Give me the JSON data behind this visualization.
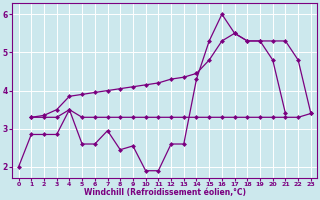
{
  "xlabel": "Windchill (Refroidissement éolien,°C)",
  "bg_color": "#cce8ed",
  "line_color": "#7b0080",
  "grid_color": "#b0d8e0",
  "xlim": [
    -0.5,
    23.5
  ],
  "ylim": [
    1.7,
    6.3
  ],
  "yticks": [
    2,
    3,
    4,
    5,
    6
  ],
  "xticks": [
    0,
    1,
    2,
    3,
    4,
    5,
    6,
    7,
    8,
    9,
    10,
    11,
    12,
    13,
    14,
    15,
    16,
    17,
    18,
    19,
    20,
    21,
    22,
    23
  ],
  "line1_x": [
    0,
    1,
    2,
    3,
    4,
    5,
    6,
    7,
    8,
    9,
    10,
    11,
    12,
    13,
    14,
    15,
    16,
    17,
    18,
    19,
    20,
    21
  ],
  "line1_y": [
    2.0,
    2.85,
    2.85,
    2.85,
    3.5,
    2.6,
    2.6,
    2.95,
    2.45,
    2.55,
    1.9,
    1.9,
    2.6,
    2.6,
    4.3,
    5.3,
    6.0,
    5.5,
    5.3,
    5.3,
    4.8,
    3.4
  ],
  "line2_full_x": [
    1,
    2,
    3,
    4,
    5,
    6,
    7,
    8,
    9,
    10,
    11,
    12,
    13,
    14,
    15,
    16,
    17,
    18,
    19,
    20,
    21,
    22,
    23
  ],
  "line2_full_y": [
    3.3,
    3.3,
    3.3,
    3.5,
    3.3,
    3.3,
    3.3,
    3.3,
    3.3,
    3.3,
    3.3,
    3.3,
    3.3,
    3.3,
    3.3,
    3.3,
    3.3,
    3.3,
    3.3,
    3.3,
    3.3,
    3.3,
    3.4
  ],
  "line3_full_x": [
    1,
    2,
    3,
    4,
    5,
    6,
    7,
    8,
    9,
    10,
    11,
    12,
    13,
    14,
    15,
    16,
    17,
    18,
    19,
    20,
    21,
    22,
    23
  ],
  "line3_full_y": [
    3.3,
    3.35,
    3.5,
    3.85,
    3.9,
    3.95,
    4.0,
    4.05,
    4.1,
    4.15,
    4.2,
    4.3,
    4.35,
    4.45,
    4.8,
    5.3,
    5.5,
    5.3,
    5.3,
    5.3,
    5.3,
    4.8,
    3.4
  ],
  "marker": "D",
  "markersize": 2.5,
  "linewidth": 0.9
}
